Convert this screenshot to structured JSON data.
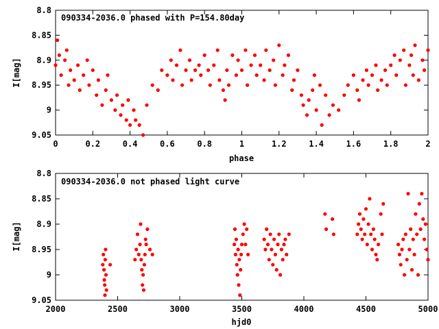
{
  "chart_data": [
    {
      "type": "scatter",
      "title": "090334-2036.0 phased with P=154.80day",
      "xlabel": "phase",
      "ylabel": "I[mag]",
      "xlim": [
        0,
        2
      ],
      "ylim": [
        9.05,
        8.8
      ],
      "y_inverted": true,
      "x_ticks": [
        0,
        0.2,
        0.4,
        0.6,
        0.8,
        1,
        1.2,
        1.4,
        1.6,
        1.8,
        2
      ],
      "x_tick_labels": [
        "0",
        "0.2",
        "0.4",
        "0.6",
        "0.8",
        "1",
        "1.2",
        "1.4",
        "1.6",
        "1.8",
        "2"
      ],
      "y_ticks": [
        8.8,
        8.85,
        8.9,
        8.95,
        9,
        9.05
      ],
      "y_tick_labels": [
        "8.8",
        "8.85",
        "8.9",
        "8.95",
        "9",
        "9.05"
      ],
      "grid": false,
      "marker_color": "#ff0000",
      "series": [
        {
          "x": [
            0.0,
            0.01,
            0.02,
            0.03,
            0.05,
            0.06,
            0.07,
            0.08,
            0.1,
            0.12,
            0.13,
            0.15,
            0.17,
            0.18,
            0.2,
            0.22,
            0.23,
            0.25,
            0.27,
            0.28,
            0.3,
            0.32,
            0.33,
            0.35,
            0.36,
            0.38,
            0.39,
            0.4,
            0.42,
            0.43,
            0.45,
            0.47,
            0.49,
            0.52,
            0.55,
            0.57,
            0.6,
            0.62,
            0.63,
            0.65,
            0.67,
            0.68,
            0.7,
            0.72,
            0.73,
            0.75,
            0.77,
            0.78,
            0.8,
            0.82,
            0.83,
            0.85,
            0.87,
            0.88,
            0.9,
            0.91,
            0.92,
            0.93,
            0.95,
            0.97,
            0.98,
            1.0,
            1.02,
            1.03,
            1.05,
            1.07,
            1.08,
            1.1,
            1.12,
            1.13,
            1.15,
            1.17,
            1.18,
            1.2,
            1.22,
            1.23,
            1.25,
            1.27,
            1.28,
            1.3,
            1.32,
            1.33,
            1.35,
            1.36,
            1.38,
            1.39,
            1.4,
            1.42,
            1.43,
            1.45,
            1.47,
            1.49,
            1.52,
            1.55,
            1.57,
            1.6,
            1.62,
            1.63,
            1.65,
            1.67,
            1.68,
            1.7,
            1.72,
            1.73,
            1.75,
            1.77,
            1.78,
            1.8,
            1.82,
            1.83,
            1.85,
            1.87,
            1.88,
            1.9,
            1.91,
            1.92,
            1.93,
            1.95,
            1.97,
            1.98,
            2.0
          ],
          "y": [
            8.91,
            8.86,
            8.89,
            8.93,
            8.9,
            8.88,
            8.95,
            8.92,
            8.94,
            8.91,
            8.96,
            8.93,
            8.9,
            8.95,
            8.92,
            8.97,
            8.94,
            8.99,
            8.96,
            8.93,
            8.98,
            9.0,
            8.97,
            9.01,
            8.99,
            9.02,
            8.98,
            9.03,
            9.0,
            9.02,
            9.03,
            9.05,
            8.99,
            8.95,
            8.96,
            8.92,
            8.93,
            8.9,
            8.94,
            8.91,
            8.88,
            8.95,
            8.92,
            8.9,
            8.94,
            8.92,
            8.91,
            8.93,
            8.89,
            8.92,
            8.95,
            8.91,
            8.88,
            8.94,
            8.96,
            8.98,
            8.92,
            8.95,
            8.89,
            8.93,
            8.9,
            8.92,
            8.88,
            8.95,
            8.91,
            8.89,
            8.93,
            8.91,
            8.94,
            8.88,
            8.92,
            8.9,
            8.95,
            8.87,
            8.93,
            8.91,
            8.89,
            8.96,
            8.94,
            8.92,
            8.97,
            8.99,
            9.01,
            8.98,
            8.96,
            8.93,
            9.0,
            8.95,
            9.03,
            8.97,
            9.01,
            8.99,
            9.0,
            8.97,
            8.95,
            8.93,
            8.96,
            8.98,
            8.94,
            8.92,
            8.95,
            8.93,
            8.91,
            8.96,
            8.94,
            8.92,
            8.95,
            8.91,
            8.89,
            8.93,
            8.9,
            8.88,
            8.95,
            8.91,
            8.89,
            8.93,
            8.87,
            8.94,
            8.9,
            8.92,
            8.88
          ]
        }
      ]
    },
    {
      "type": "scatter",
      "title": "090334-2036.0 not phased light curve",
      "xlabel": "hjd0",
      "ylabel": "I[mag]",
      "xlim": [
        2000,
        5000
      ],
      "ylim": [
        9.05,
        8.8
      ],
      "y_inverted": true,
      "x_ticks": [
        2000,
        2500,
        3000,
        3500,
        4000,
        4500,
        5000
      ],
      "x_tick_labels": [
        "2000",
        "2500",
        "3000",
        "3500",
        "4000",
        "4500",
        "5000"
      ],
      "y_ticks": [
        8.8,
        8.85,
        8.9,
        8.95,
        9,
        9.05
      ],
      "y_tick_labels": [
        "8.8",
        "8.85",
        "8.9",
        "8.95",
        "9",
        "9.05"
      ],
      "grid": false,
      "marker_color": "#ff0000",
      "series": [
        {
          "x": [
            2380,
            2385,
            2390,
            2393,
            2396,
            2398,
            2400,
            2403,
            2406,
            2410,
            2440,
            2640,
            2650,
            2660,
            2670,
            2680,
            2685,
            2690,
            2695,
            2700,
            2705,
            2710,
            2715,
            2720,
            2725,
            2730,
            2740,
            2760,
            2780,
            3440,
            3445,
            3450,
            3455,
            3460,
            3465,
            3470,
            3475,
            3480,
            3485,
            3490,
            3495,
            3500,
            3510,
            3520,
            3530,
            3540,
            3550,
            3680,
            3690,
            3700,
            3710,
            3720,
            3730,
            3740,
            3750,
            3760,
            3770,
            3780,
            3790,
            3800,
            3810,
            3820,
            3830,
            3840,
            3850,
            3860,
            3880,
            4170,
            4180,
            4230,
            4240,
            4430,
            4440,
            4450,
            4460,
            4470,
            4480,
            4490,
            4500,
            4510,
            4520,
            4530,
            4540,
            4550,
            4560,
            4570,
            4580,
            4590,
            4600,
            4620,
            4630,
            4640,
            4760,
            4770,
            4780,
            4790,
            4800,
            4810,
            4820,
            4830,
            4840,
            4850,
            4860,
            4870,
            4880,
            4890,
            4900,
            4910,
            4920,
            4930,
            4940,
            4950,
            4960,
            4970,
            4980,
            4990,
            5000
          ],
          "y": [
            8.98,
            8.96,
            8.99,
            9.01,
            9.02,
            9.04,
            8.97,
            8.95,
            9.0,
            9.03,
            8.98,
            8.97,
            8.95,
            8.92,
            8.96,
            8.94,
            8.9,
            8.97,
            8.99,
            9.02,
            9.0,
            9.03,
            8.98,
            8.96,
            8.93,
            8.94,
            8.91,
            8.95,
            8.96,
            8.94,
            8.91,
            8.96,
            8.93,
            8.98,
            9.0,
            8.95,
            9.02,
            8.97,
            9.04,
            8.99,
            8.96,
            8.94,
            8.92,
            8.9,
            8.94,
            8.91,
            8.96,
            8.93,
            8.95,
            8.91,
            8.94,
            8.97,
            8.92,
            8.95,
            8.98,
            8.93,
            8.96,
            8.99,
            8.94,
            8.92,
            9.0,
            8.95,
            8.97,
            8.94,
            8.93,
            8.96,
            8.92,
            8.88,
            8.91,
            8.89,
            8.92,
            8.92,
            8.9,
            8.88,
            8.91,
            8.93,
            8.89,
            8.92,
            8.87,
            8.94,
            8.9,
            8.85,
            8.92,
            8.95,
            8.91,
            8.93,
            8.96,
            8.97,
            8.94,
            8.88,
            8.92,
            8.86,
            8.94,
            8.96,
            8.98,
            8.95,
            8.93,
            9.0,
            8.92,
            8.97,
            8.84,
            8.95,
            8.91,
            8.99,
            8.93,
            8.96,
            8.88,
            8.92,
            9.0,
            8.86,
            8.91,
            8.84,
            8.89,
            8.93,
            8.9,
            8.95,
            8.97
          ]
        }
      ]
    }
  ]
}
